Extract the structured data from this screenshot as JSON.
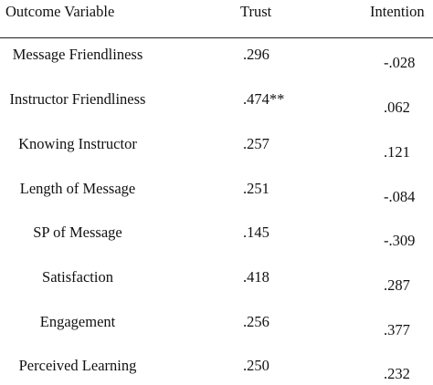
{
  "table": {
    "headers": {
      "variable": "Outcome Variable",
      "trust": "Trust",
      "intention": "Intention"
    },
    "rows": [
      {
        "variable": "Message Friendliness",
        "trust": ".296",
        "intention": "-.028"
      },
      {
        "variable": "Instructor Friendliness",
        "trust": ".474**",
        "intention": ".062"
      },
      {
        "variable": "Knowing Instructor",
        "trust": ".257",
        "intention": ".121"
      },
      {
        "variable": "Length of Message",
        "trust": ".251",
        "intention": "-.084"
      },
      {
        "variable": "SP of Message",
        "trust": ".145",
        "intention": "-.309"
      },
      {
        "variable": "Satisfaction",
        "trust": ".418",
        "intention": ".287"
      },
      {
        "variable": "Engagement",
        "trust": ".256",
        "intention": ".377"
      },
      {
        "variable": "Perceived Learning",
        "trust": ".250",
        "intention": ".232"
      }
    ]
  }
}
